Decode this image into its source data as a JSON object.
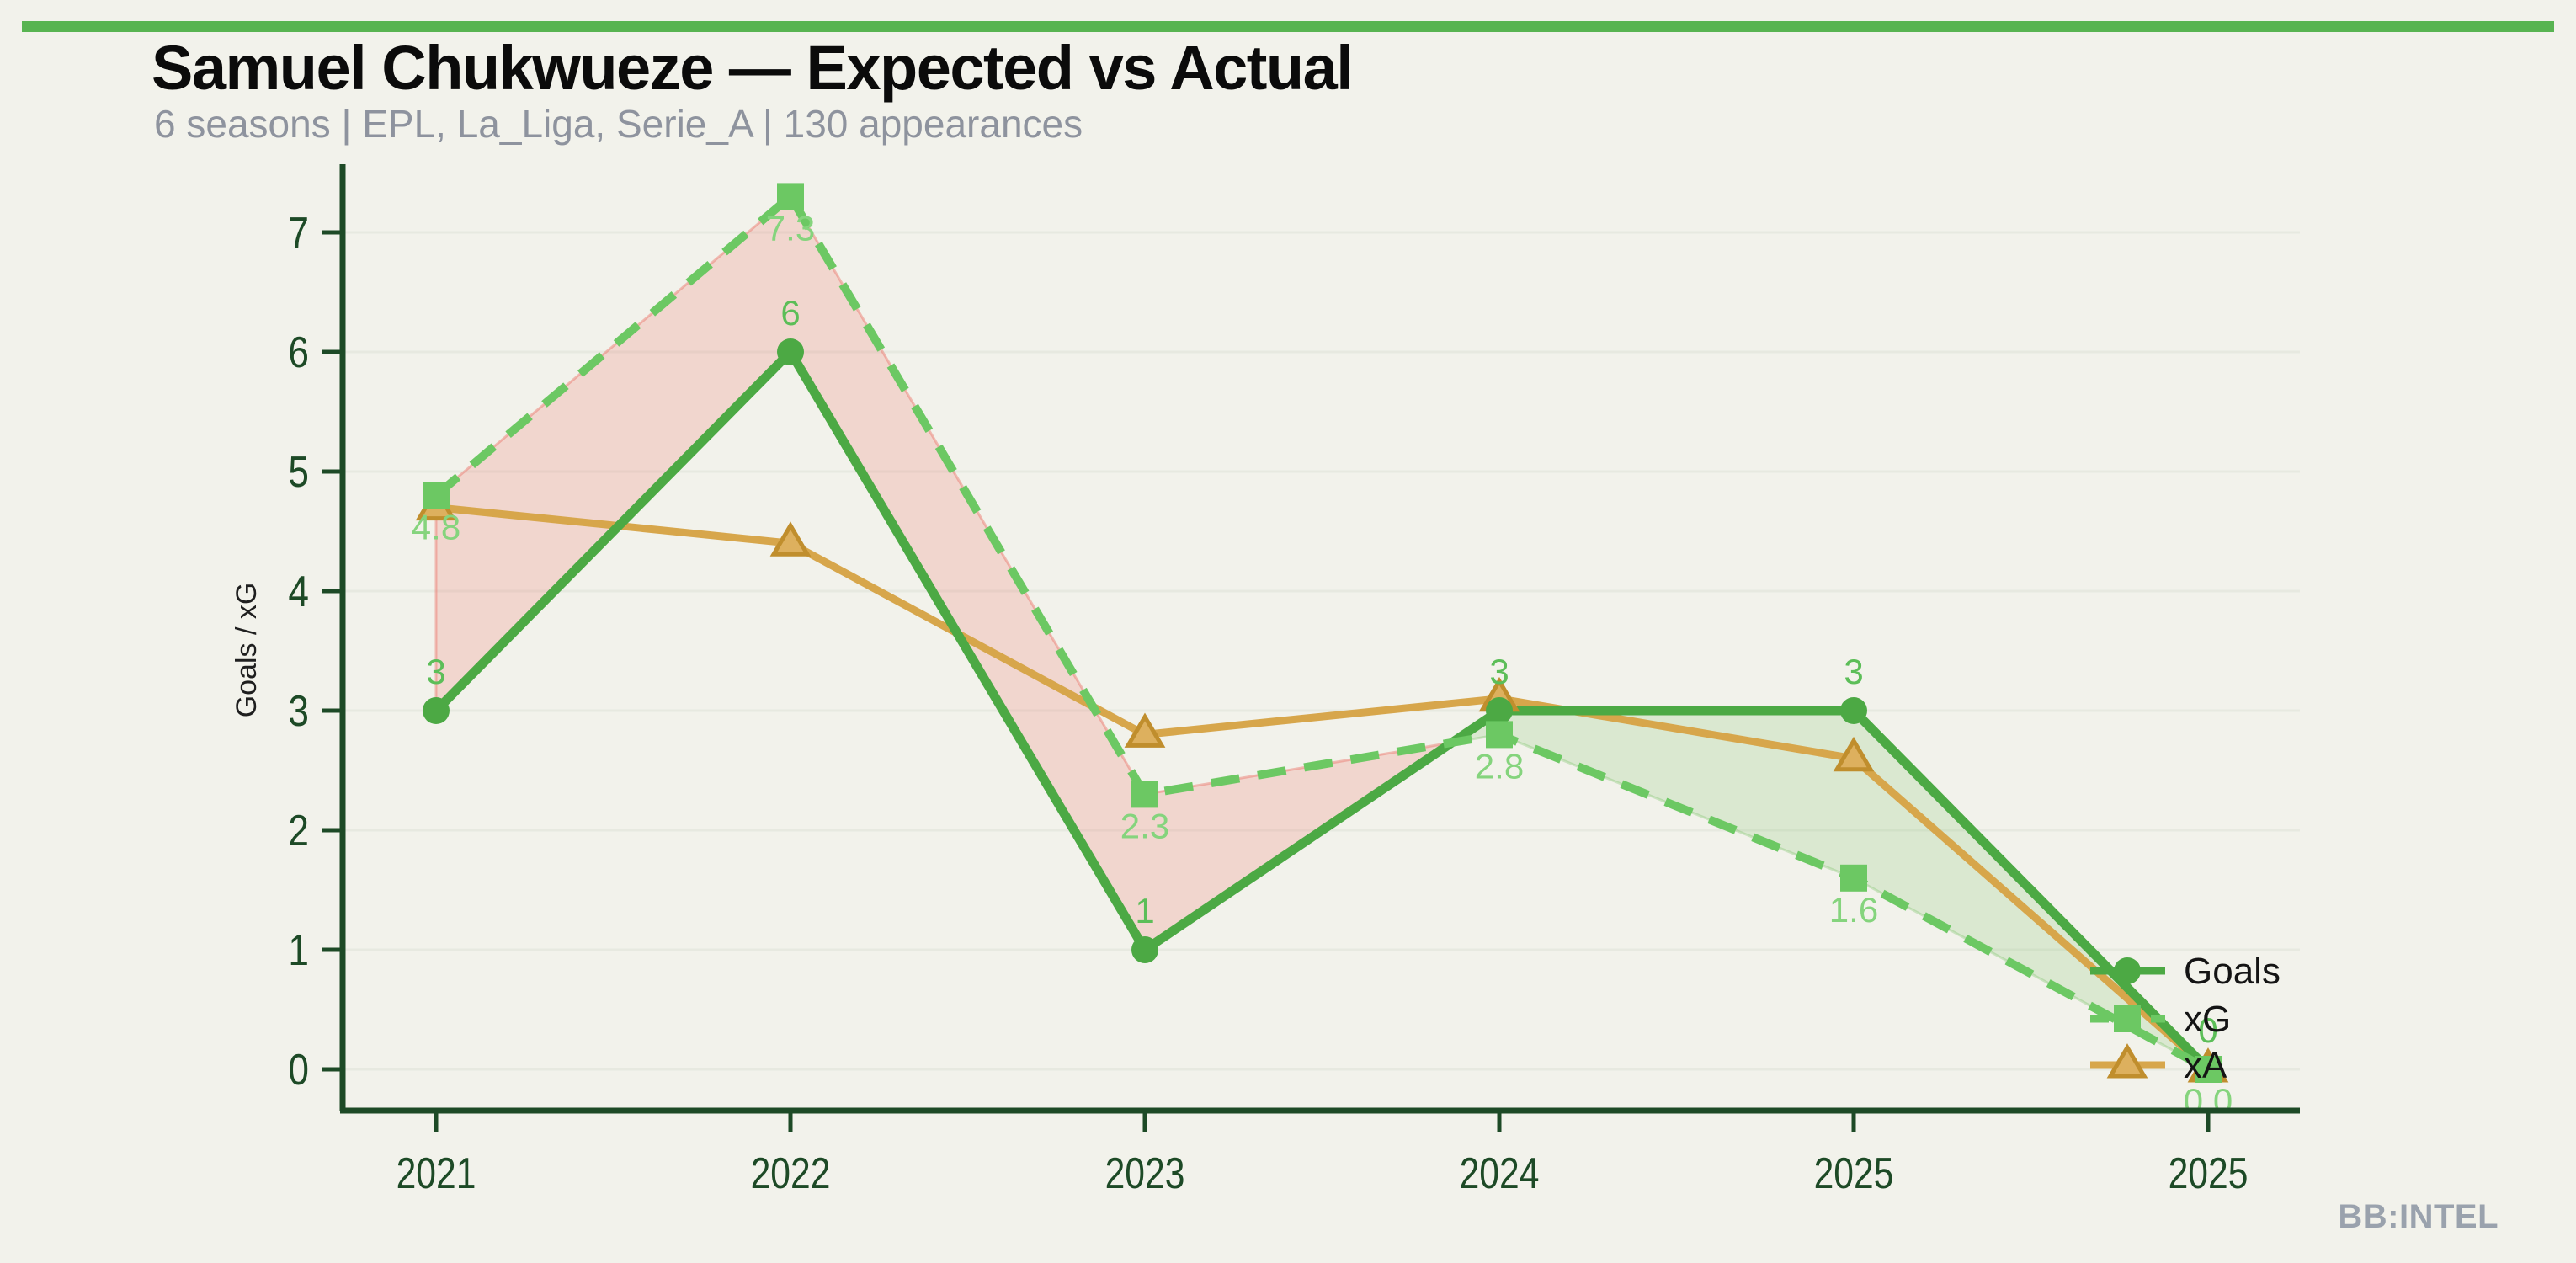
{
  "header": {
    "title": "Samuel Chukwueze — Expected vs Actual",
    "subtitle": "6 seasons | EPL, La_Liga, Serie_A | 130 appearances"
  },
  "footer": {
    "brand": "BB:INTEL"
  },
  "theme": {
    "background": "#f2f2eb",
    "top_bar": "#58b451",
    "title_color": "#0b0b0b",
    "subtitle_color": "#8e939e",
    "axis": "#1d4a26",
    "tick_label": "#1d4a26",
    "axis_label": "#1f1f1f",
    "grid": "rgba(70,100,50,0.06)",
    "goals": "#4ca944",
    "goals_label": "#5cbe58",
    "xg": "#6cc863",
    "xg_label": "#85d47d",
    "xa": "#d7a64b",
    "xa_marker_fill": "#ddb05e",
    "xa_marker_stroke": "#c08e2d",
    "over_fill": "rgba(110,190,90,0.18)",
    "over_stroke": "rgba(110,190,90,0.30)",
    "under_fill": "rgba(235,115,105,0.22)",
    "under_stroke": "rgba(235,115,105,0.45)",
    "legend_text": "#141414",
    "footer_color": "#9aa2ad"
  },
  "chart_data": {
    "type": "line",
    "title": "Samuel Chukwueze — Expected vs Actual",
    "subtitle": "6 seasons | EPL, La_Liga, Serie_A | 130 appearances",
    "categories": [
      "2021",
      "2022",
      "2023",
      "2024",
      "2025",
      "2025"
    ],
    "ylabel": "Goals / xG",
    "ylim": [
      0,
      7
    ],
    "yticks": [
      0,
      1,
      2,
      3,
      4,
      5,
      6,
      7
    ],
    "grid": "horizontal",
    "legend_position": "right",
    "legend": [
      "Goals",
      "xG",
      "xA"
    ],
    "series": [
      {
        "name": "Goals",
        "values": [
          3,
          6,
          1,
          3,
          3,
          0
        ],
        "labels": [
          "3",
          "6",
          "1",
          "3",
          "3",
          "0"
        ],
        "label_position": "above",
        "marker": "circle",
        "line": "solid",
        "color_key": "goals",
        "label_color_key": "goals_label"
      },
      {
        "name": "xG",
        "values": [
          4.8,
          7.3,
          2.3,
          2.8,
          1.6,
          0.0
        ],
        "labels": [
          "4.8",
          "7.3",
          "2.3",
          "2.8",
          "1.6",
          "0.0"
        ],
        "label_position": "below",
        "marker": "square",
        "line": "dashed",
        "color_key": "xg",
        "label_color_key": "xg_label"
      },
      {
        "name": "xA",
        "values": [
          4.7,
          4.4,
          2.8,
          3.1,
          2.6,
          0.0
        ],
        "labels": null,
        "marker": "triangle",
        "line": "solid",
        "color_key": "xa"
      }
    ],
    "shading": {
      "over": "Goals above xG (green band)",
      "under": "xG above Goals (pink band)"
    }
  }
}
